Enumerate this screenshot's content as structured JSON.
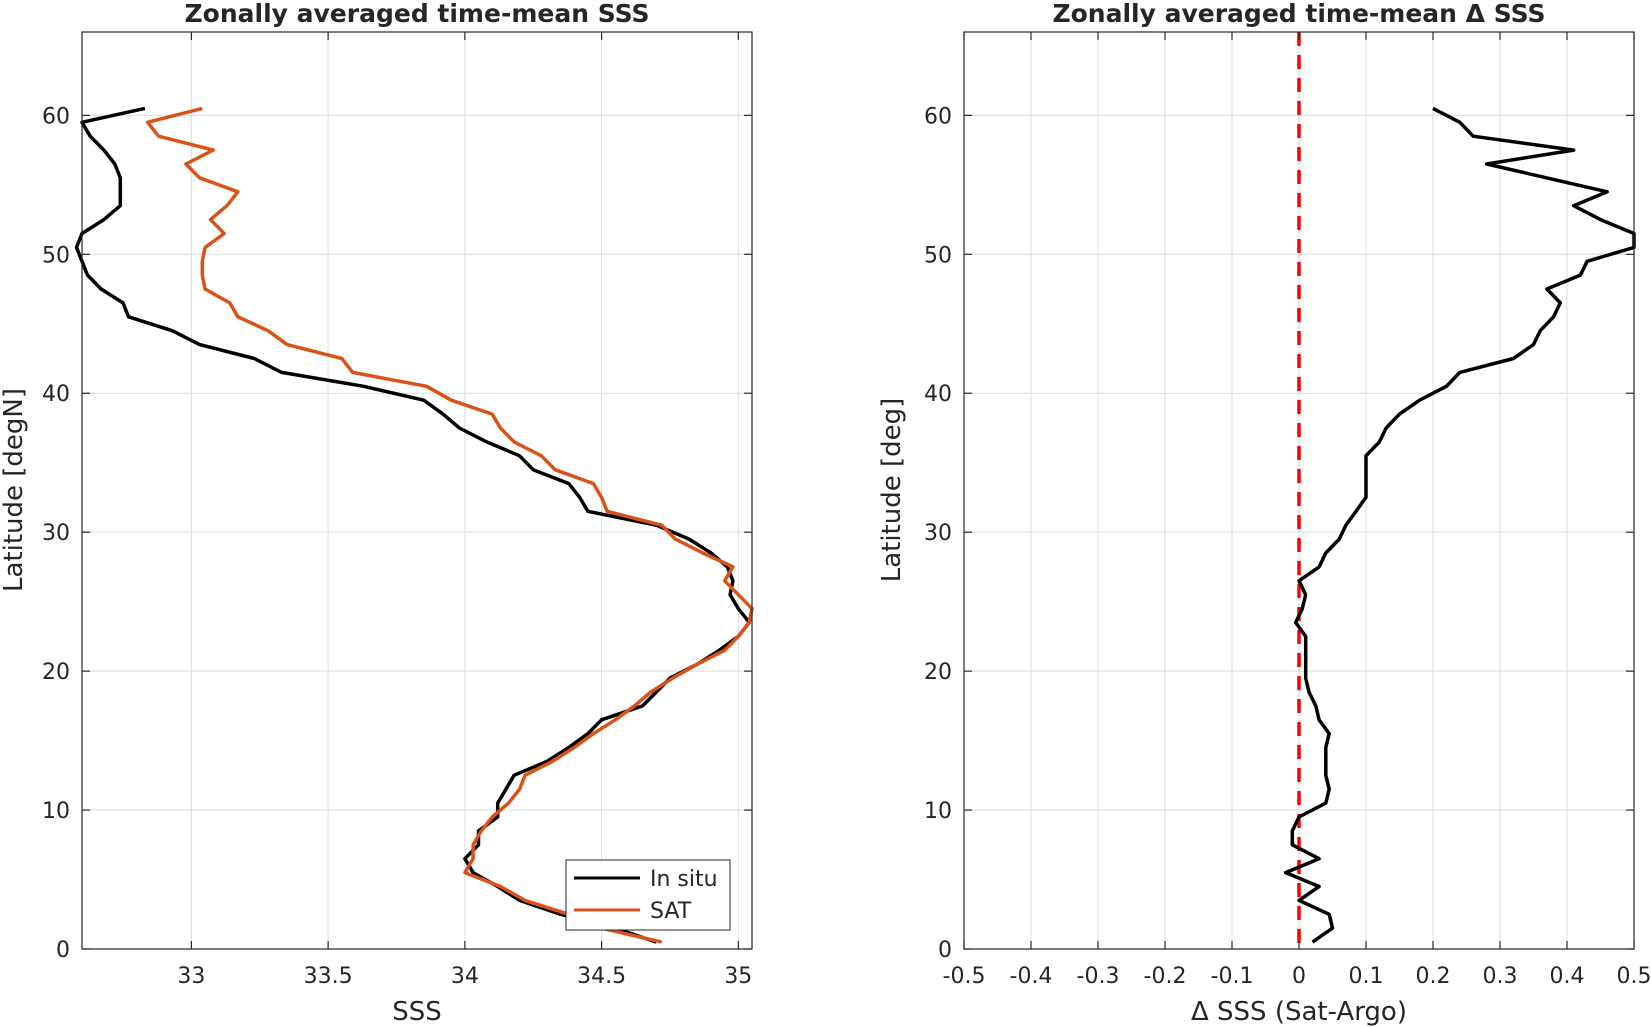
{
  "chart_data": [
    {
      "type": "line",
      "title": "Zonally averaged time-mean SSS",
      "xlabel": "SSS",
      "ylabel": "Latitude [degN]",
      "xlim": [
        32.6,
        35.05
      ],
      "ylim": [
        0,
        66
      ],
      "xticks": [
        33,
        33.5,
        34,
        34.5,
        35
      ],
      "xtick_labels": [
        "33",
        "33.5",
        "34",
        "34.5",
        "35"
      ],
      "yticks": [
        0,
        10,
        20,
        30,
        40,
        50,
        60
      ],
      "ytick_labels": [
        "0",
        "10",
        "20",
        "30",
        "40",
        "50",
        "60"
      ],
      "grid": true,
      "legend": "bottom-right",
      "series": [
        {
          "name": "In situ",
          "color": "#000000",
          "points": [
            [
              34.7,
              0.5
            ],
            [
              34.55,
              1.5
            ],
            [
              34.35,
              2.5
            ],
            [
              34.2,
              3.5
            ],
            [
              34.12,
              4.5
            ],
            [
              34.03,
              5.5
            ],
            [
              34.0,
              6.5
            ],
            [
              34.05,
              7.5
            ],
            [
              34.05,
              8.5
            ],
            [
              34.12,
              9.5
            ],
            [
              34.12,
              10.5
            ],
            [
              34.15,
              11.5
            ],
            [
              34.18,
              12.5
            ],
            [
              34.3,
              13.5
            ],
            [
              34.38,
              14.5
            ],
            [
              34.45,
              15.5
            ],
            [
              34.5,
              16.5
            ],
            [
              34.65,
              17.5
            ],
            [
              34.7,
              18.5
            ],
            [
              34.75,
              19.5
            ],
            [
              34.85,
              20.5
            ],
            [
              34.93,
              21.5
            ],
            [
              35.0,
              22.5
            ],
            [
              35.04,
              23.5
            ],
            [
              35.0,
              24.5
            ],
            [
              34.97,
              25.5
            ],
            [
              34.98,
              26.5
            ],
            [
              34.96,
              27.5
            ],
            [
              34.9,
              28.5
            ],
            [
              34.82,
              29.5
            ],
            [
              34.7,
              30.5
            ],
            [
              34.45,
              31.5
            ],
            [
              34.42,
              32.5
            ],
            [
              34.38,
              33.5
            ],
            [
              34.25,
              34.5
            ],
            [
              34.2,
              35.5
            ],
            [
              34.08,
              36.5
            ],
            [
              33.98,
              37.5
            ],
            [
              33.92,
              38.5
            ],
            [
              33.85,
              39.5
            ],
            [
              33.63,
              40.5
            ],
            [
              33.33,
              41.5
            ],
            [
              33.23,
              42.5
            ],
            [
              33.03,
              43.5
            ],
            [
              32.93,
              44.5
            ],
            [
              32.77,
              45.5
            ],
            [
              32.75,
              46.5
            ],
            [
              32.67,
              47.5
            ],
            [
              32.62,
              48.5
            ],
            [
              32.6,
              49.5
            ],
            [
              32.58,
              50.5
            ],
            [
              32.6,
              51.5
            ],
            [
              32.68,
              52.5
            ],
            [
              32.74,
              53.5
            ],
            [
              32.74,
              54.5
            ],
            [
              32.74,
              55.5
            ],
            [
              32.72,
              56.5
            ],
            [
              32.68,
              57.5
            ],
            [
              32.63,
              58.5
            ],
            [
              32.6,
              59.5
            ],
            [
              32.83,
              60.5
            ]
          ]
        },
        {
          "name": "SAT",
          "color": "#D95319",
          "points": [
            [
              34.72,
              0.5
            ],
            [
              34.5,
              1.5
            ],
            [
              34.38,
              2.5
            ],
            [
              34.22,
              3.5
            ],
            [
              34.13,
              4.5
            ],
            [
              34.0,
              5.5
            ],
            [
              34.03,
              6.5
            ],
            [
              34.03,
              7.5
            ],
            [
              34.06,
              8.5
            ],
            [
              34.1,
              9.5
            ],
            [
              34.16,
              10.5
            ],
            [
              34.2,
              11.5
            ],
            [
              34.22,
              12.5
            ],
            [
              34.32,
              13.5
            ],
            [
              34.4,
              14.5
            ],
            [
              34.47,
              15.5
            ],
            [
              34.55,
              16.5
            ],
            [
              34.62,
              17.5
            ],
            [
              34.68,
              18.5
            ],
            [
              34.76,
              19.5
            ],
            [
              34.85,
              20.5
            ],
            [
              34.95,
              21.5
            ],
            [
              35.0,
              22.5
            ],
            [
              35.04,
              23.5
            ],
            [
              35.05,
              24.5
            ],
            [
              35.0,
              25.5
            ],
            [
              34.95,
              26.5
            ],
            [
              34.98,
              27.5
            ],
            [
              34.87,
              28.5
            ],
            [
              34.77,
              29.5
            ],
            [
              34.72,
              30.5
            ],
            [
              34.52,
              31.5
            ],
            [
              34.5,
              32.5
            ],
            [
              34.47,
              33.5
            ],
            [
              34.33,
              34.5
            ],
            [
              34.28,
              35.5
            ],
            [
              34.18,
              36.5
            ],
            [
              34.13,
              37.5
            ],
            [
              34.1,
              38.5
            ],
            [
              33.95,
              39.5
            ],
            [
              33.86,
              40.5
            ],
            [
              33.59,
              41.5
            ],
            [
              33.55,
              42.5
            ],
            [
              33.35,
              43.5
            ],
            [
              33.28,
              44.5
            ],
            [
              33.17,
              45.5
            ],
            [
              33.14,
              46.5
            ],
            [
              33.05,
              47.5
            ],
            [
              33.04,
              48.5
            ],
            [
              33.04,
              49.5
            ],
            [
              33.05,
              50.5
            ],
            [
              33.12,
              51.5
            ],
            [
              33.07,
              52.5
            ],
            [
              33.13,
              53.5
            ],
            [
              33.17,
              54.5
            ],
            [
              33.03,
              55.5
            ],
            [
              32.98,
              56.5
            ],
            [
              33.08,
              57.5
            ],
            [
              32.88,
              58.5
            ],
            [
              32.84,
              59.5
            ],
            [
              33.04,
              60.5
            ]
          ]
        }
      ]
    },
    {
      "type": "line",
      "title": "Zonally averaged time-mean Δ SSS",
      "xlabel": "Δ SSS (Sat-Argo)",
      "ylabel": "Latitude [deg]",
      "xlim": [
        -0.5,
        0.5
      ],
      "ylim": [
        0,
        66
      ],
      "xticks": [
        -0.5,
        -0.4,
        -0.3,
        -0.2,
        -0.1,
        0,
        0.1,
        0.2,
        0.3,
        0.4,
        0.5
      ],
      "xtick_labels": [
        "-0.5",
        "-0.4",
        "-0.3",
        "-0.2",
        "-0.1",
        "0",
        "0.1",
        "0.2",
        "0.3",
        "0.4",
        "0.5"
      ],
      "yticks": [
        0,
        10,
        20,
        30,
        40,
        50,
        60
      ],
      "ytick_labels": [
        "0",
        "10",
        "20",
        "30",
        "40",
        "50",
        "60"
      ],
      "grid": true,
      "series": [
        {
          "color": "#000000",
          "points": [
            [
              0.02,
              0.5
            ],
            [
              0.05,
              1.5
            ],
            [
              0.045,
              2.5
            ],
            [
              0.0,
              3.5
            ],
            [
              0.03,
              4.5
            ],
            [
              -0.02,
              5.5
            ],
            [
              0.03,
              6.5
            ],
            [
              -0.01,
              7.5
            ],
            [
              -0.01,
              8.5
            ],
            [
              0.0,
              9.5
            ],
            [
              0.04,
              10.5
            ],
            [
              0.045,
              11.5
            ],
            [
              0.04,
              12.5
            ],
            [
              0.04,
              13.5
            ],
            [
              0.04,
              14.5
            ],
            [
              0.045,
              15.5
            ],
            [
              0.03,
              16.5
            ],
            [
              0.025,
              17.5
            ],
            [
              0.015,
              18.5
            ],
            [
              0.01,
              19.5
            ],
            [
              0.01,
              20.5
            ],
            [
              0.01,
              21.5
            ],
            [
              0.01,
              22.5
            ],
            [
              -0.005,
              23.5
            ],
            [
              0.005,
              24.5
            ],
            [
              0.01,
              25.5
            ],
            [
              0.0,
              26.5
            ],
            [
              0.03,
              27.5
            ],
            [
              0.04,
              28.5
            ],
            [
              0.06,
              29.5
            ],
            [
              0.07,
              30.5
            ],
            [
              0.085,
              31.5
            ],
            [
              0.1,
              32.5
            ],
            [
              0.1,
              33.5
            ],
            [
              0.1,
              34.5
            ],
            [
              0.1,
              35.5
            ],
            [
              0.12,
              36.5
            ],
            [
              0.13,
              37.5
            ],
            [
              0.15,
              38.5
            ],
            [
              0.18,
              39.5
            ],
            [
              0.22,
              40.5
            ],
            [
              0.24,
              41.5
            ],
            [
              0.32,
              42.5
            ],
            [
              0.35,
              43.5
            ],
            [
              0.36,
              44.5
            ],
            [
              0.38,
              45.5
            ],
            [
              0.39,
              46.5
            ],
            [
              0.37,
              47.5
            ],
            [
              0.42,
              48.5
            ],
            [
              0.43,
              49.5
            ],
            [
              0.5,
              50.5
            ],
            [
              0.5,
              51.5
            ],
            [
              0.45,
              52.5
            ],
            [
              0.41,
              53.5
            ],
            [
              0.46,
              54.5
            ],
            [
              0.37,
              55.5
            ],
            [
              0.28,
              56.5
            ],
            [
              0.41,
              57.5
            ],
            [
              0.26,
              58.5
            ],
            [
              0.24,
              59.5
            ],
            [
              0.2,
              60.5
            ]
          ]
        }
      ],
      "reference_line": {
        "x": 0,
        "color": "#FF0000",
        "style": "dashed"
      }
    }
  ]
}
